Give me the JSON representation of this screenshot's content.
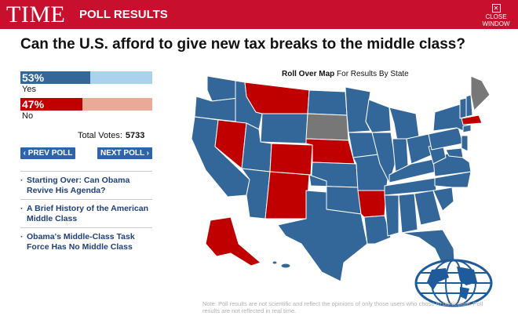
{
  "header": {
    "logo": "TIME",
    "title": "POLL RESULTS",
    "close_line1": "CLOSE",
    "close_line2": "WINDOW"
  },
  "poll": {
    "question": "Can the U.S. afford to give new tax breaks to the middle class?",
    "yes": {
      "pct_label": "53%",
      "label": "Yes",
      "fraction": 0.53,
      "color": "#336699",
      "track_color": "#a9d3ea"
    },
    "no": {
      "pct_label": "47%",
      "label": "No",
      "fraction": 0.47,
      "color": "#c00000",
      "track_color": "#e9aa98"
    },
    "total_label": "Total Votes:",
    "total_value": "5733"
  },
  "nav": {
    "prev_label": "‹ PREV POLL",
    "next_label": "NEXT POLL ›"
  },
  "links": [
    {
      "text": "Starting Over: Can Obama Revive His Agenda?"
    },
    {
      "text": "A Brief History of the American Middle Class"
    },
    {
      "text": "Obama's Middle-Class Task Force Has No Middle Class"
    }
  ],
  "map": {
    "caption_bold": "Roll Over Map",
    "caption_rest": "For Results By State",
    "colors": {
      "yes": "#336699",
      "no": "#c00000",
      "none": "#777777"
    }
  },
  "footnote": "Note: Poll results are not scientific and reflect the opinions of only those users who chose to participate. Poll results are not reflected in real time."
}
